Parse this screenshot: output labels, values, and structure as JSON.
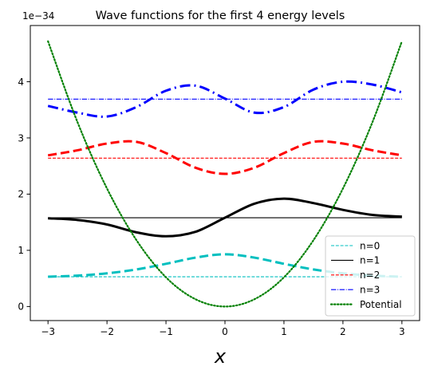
{
  "chart_data": {
    "type": "line",
    "title": "Wave functions for the first 4 energy levels",
    "xlabel": "x",
    "ylabel": "",
    "offset_text": "1e−34",
    "xlim": [
      -3.3,
      3.3
    ],
    "ylim": [
      -0.25,
      5.0
    ],
    "x_ticks": [
      -3,
      -2,
      -1,
      0,
      1,
      2,
      3
    ],
    "x_tick_labels": [
      "−3",
      "−2",
      "−1",
      "0",
      "1",
      "2",
      "3"
    ],
    "y_ticks": [
      0,
      1,
      2,
      3,
      4
    ],
    "y_tick_labels": [
      "0",
      "1",
      "2",
      "3",
      "4"
    ],
    "grid": false,
    "legend_position": "lower right",
    "legend": [
      "n=0",
      "n=1",
      "n=2",
      "n=3",
      "Potential"
    ],
    "x": [
      -3,
      -2.5,
      -2,
      -1.5,
      -1,
      -0.5,
      0,
      0.5,
      1,
      1.5,
      2,
      2.5,
      3
    ],
    "series": [
      {
        "name": "n=0",
        "type": "level",
        "color": "#00bfbf",
        "style": "dashed",
        "value": 0.53
      },
      {
        "name": "n=1",
        "type": "level",
        "color": "#000000",
        "style": "solid",
        "value": 1.58
      },
      {
        "name": "n=2",
        "type": "level",
        "color": "#ff0000",
        "style": "dashed",
        "value": 2.64
      },
      {
        "name": "n=3",
        "type": "level",
        "color": "#0000ff",
        "style": "dashdot",
        "value": 3.69
      },
      {
        "name": "",
        "type": "wave",
        "color": "#00bfbf",
        "style": "dashed",
        "values": [
          0.53,
          0.55,
          0.59,
          0.66,
          0.76,
          0.87,
          0.93,
          0.87,
          0.76,
          0.66,
          0.59,
          0.55,
          0.53
        ]
      },
      {
        "name": "",
        "type": "wave",
        "color": "#000000",
        "style": "solid",
        "values": [
          1.57,
          1.54,
          1.46,
          1.32,
          1.25,
          1.33,
          1.58,
          1.83,
          1.92,
          1.84,
          1.72,
          1.63,
          1.6
        ]
      },
      {
        "name": "",
        "type": "wave",
        "color": "#ff0000",
        "style": "dashed",
        "values": [
          2.69,
          2.78,
          2.9,
          2.93,
          2.73,
          2.47,
          2.36,
          2.47,
          2.73,
          2.93,
          2.9,
          2.78,
          2.69
        ]
      },
      {
        "name": "",
        "type": "wave",
        "color": "#0000ff",
        "style": "dashdot",
        "values": [
          3.57,
          3.45,
          3.38,
          3.55,
          3.84,
          3.93,
          3.7,
          3.45,
          3.55,
          3.86,
          4.0,
          3.95,
          3.81
        ]
      },
      {
        "name": "Potential",
        "type": "potential",
        "color": "#008000",
        "style": "dotted",
        "values": [
          4.72,
          3.28,
          2.1,
          1.18,
          0.52,
          0.13,
          0.0,
          0.13,
          0.52,
          1.18,
          2.1,
          3.28,
          4.72
        ]
      }
    ]
  }
}
